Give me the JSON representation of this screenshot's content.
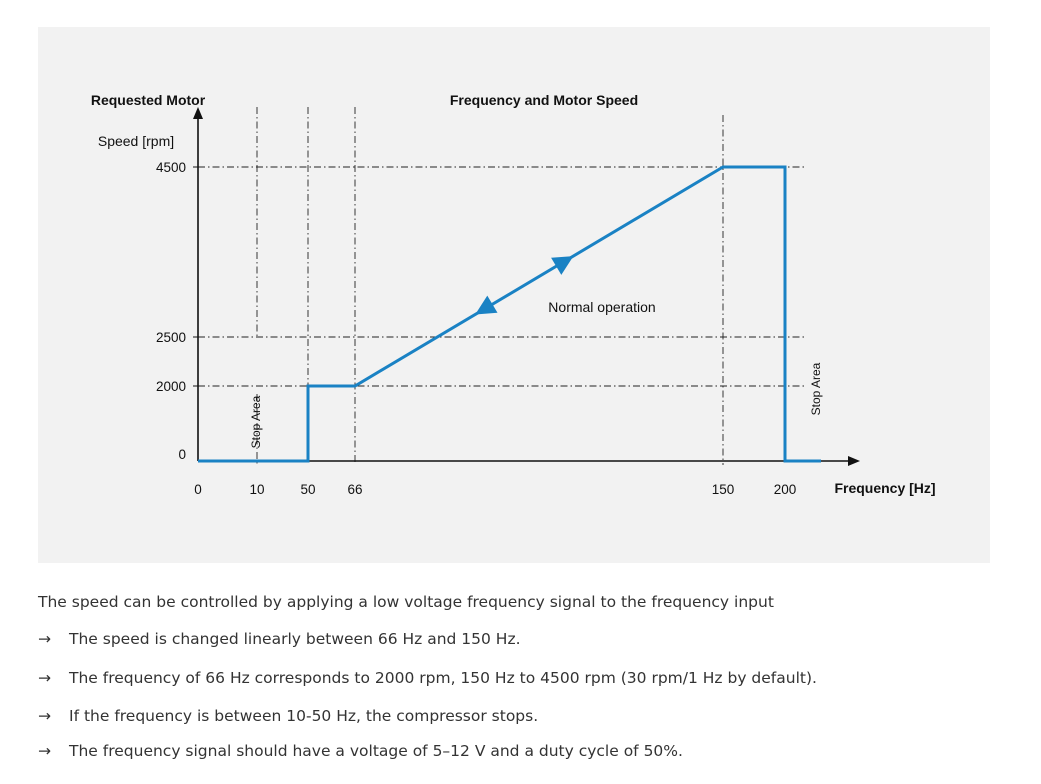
{
  "chart_data": {
    "type": "line",
    "title": "Frequency and Motor Speed",
    "ylabel_line1": "Requested Motor",
    "ylabel_line2": "Speed [rpm]",
    "xlabel": "Frequency [Hz]",
    "x_ticks": [
      "0",
      "10",
      "50",
      "66",
      "150",
      "200"
    ],
    "y_ticks": [
      "0",
      "2000",
      "2500",
      "4500"
    ],
    "series": [
      {
        "points": [
          [
            0,
            0
          ],
          [
            50,
            0
          ],
          [
            50,
            2000
          ],
          [
            66,
            2000
          ],
          [
            150,
            4500
          ],
          [
            200,
            4500
          ],
          [
            200,
            0
          ],
          [
            215,
            0
          ]
        ]
      }
    ],
    "annotations": {
      "normal_operation": "Normal operation",
      "stop_area_low": "Stop Area",
      "stop_area_high": "Stop Area"
    },
    "line_color": "#1a82c4"
  },
  "text": {
    "description": "The speed can be controlled by applying a low voltage frequency signal to the frequency input",
    "arrow_glyph": "→",
    "bullets": [
      "The speed is changed linearly between 66 Hz and 150 Hz.",
      "The frequency of 66 Hz corresponds to 2000 rpm, 150 Hz to 4500 rpm (30 rpm/1 Hz by default).",
      "If the frequency is between 10-50 Hz, the compressor stops.",
      "The frequency signal should have a voltage of 5–12 V and a duty cycle of 50%."
    ]
  }
}
